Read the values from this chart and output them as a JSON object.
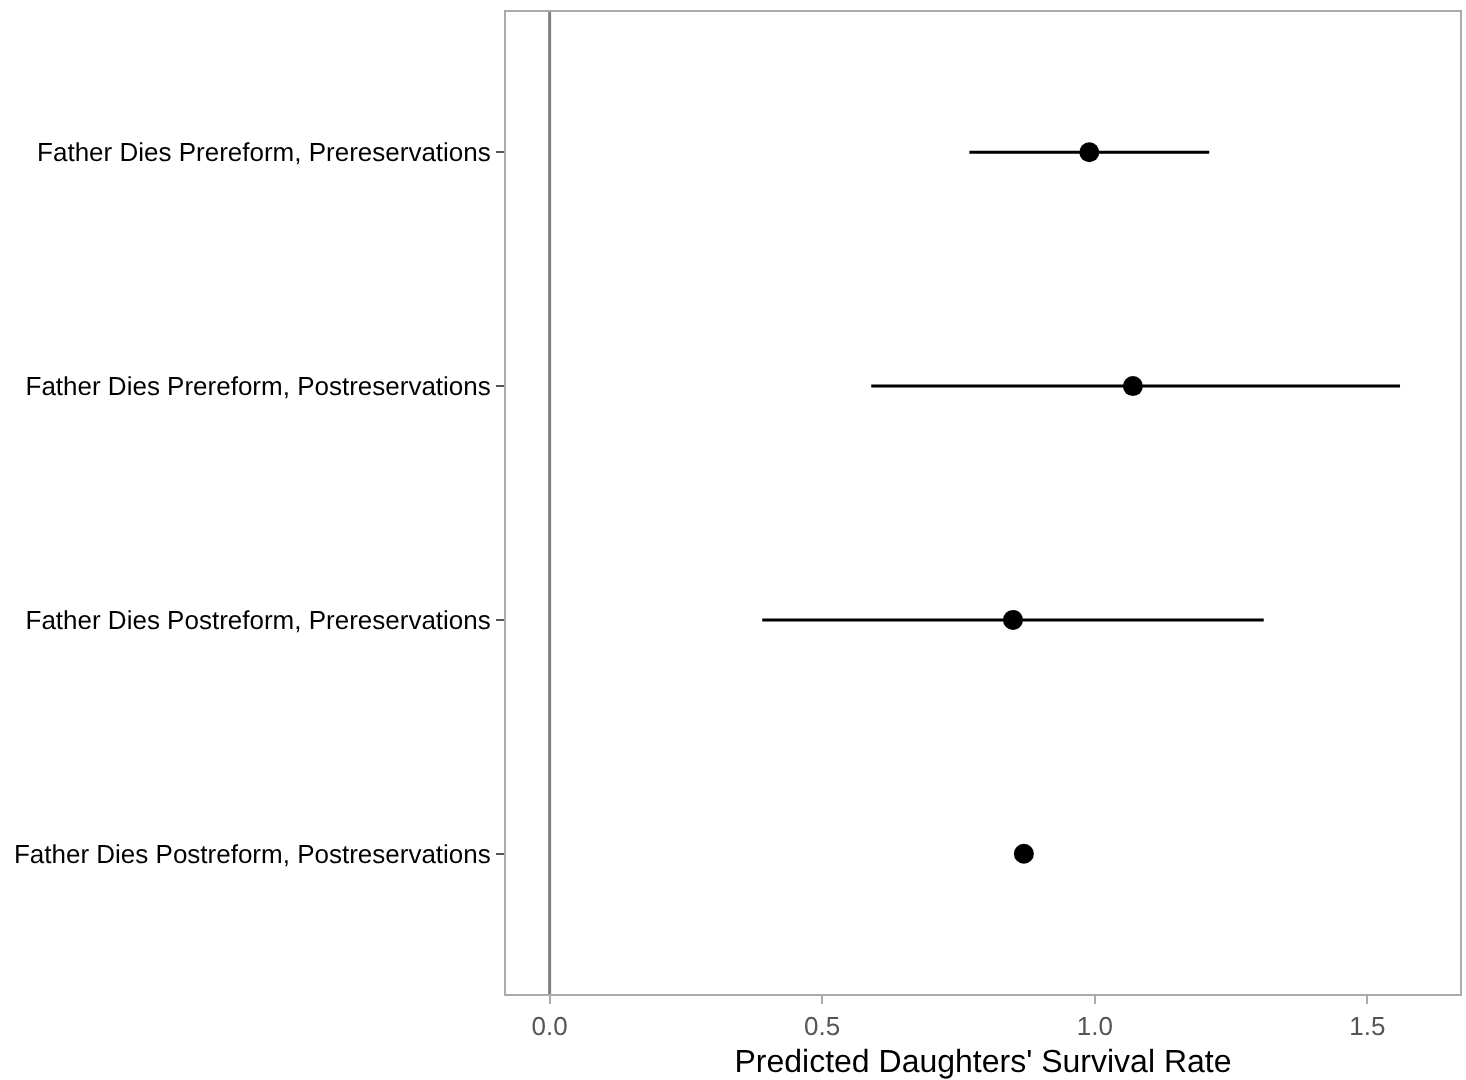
{
  "chart_data": {
    "type": "scatter",
    "orientation": "horizontal",
    "xlabel": "Predicted Daughters' Survival Rate",
    "categories": [
      "Father Dies Prereform, Prereservations",
      "Father Dies Prereform, Postreservations",
      "Father Dies Postreform, Prereservations",
      "Father Dies Postreform, Postreservations"
    ],
    "values": [
      0.99,
      1.07,
      0.85,
      0.87
    ],
    "errors": [
      [
        0.77,
        1.21
      ],
      [
        0.59,
        1.56
      ],
      [
        0.39,
        1.31
      ],
      null
    ],
    "color": "#000000",
    "marker": "circle",
    "xlim": [
      -0.08,
      1.67
    ],
    "xticks": [
      {
        "value": 0,
        "label": "0.0"
      },
      0.5,
      {
        "value": 1,
        "label": "1.0"
      },
      1.5
    ],
    "ref_lines": [
      {
        "axis": "x",
        "value": 0,
        "color": "#808080"
      }
    ],
    "grid": false
  }
}
